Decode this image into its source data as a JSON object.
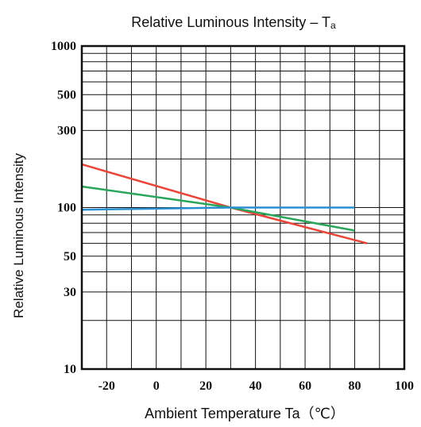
{
  "chart_data": {
    "type": "line",
    "title_main": "Relative Luminous Intensity – T",
    "title_sub": "a",
    "xlabel": "Ambient Temperature  Ta（℃）",
    "ylabel": "Relative Luminous Intensity",
    "xlim": [
      -30,
      100
    ],
    "ylim": [
      10,
      1000
    ],
    "yscale": "log",
    "grid": true,
    "x_ticks": [
      -20,
      0,
      20,
      40,
      60,
      80,
      100
    ],
    "x_tick_labels": [
      "-20",
      "0",
      "20",
      "40",
      "60",
      "80",
      "100"
    ],
    "y_ticks": [
      10,
      30,
      50,
      100,
      300,
      500,
      1000
    ],
    "y_tick_labels": [
      "10",
      "30",
      "50",
      "100",
      "300",
      "500",
      "1000"
    ],
    "y_gridlines": [
      10,
      20,
      30,
      40,
      50,
      60,
      70,
      80,
      90,
      100,
      200,
      300,
      400,
      500,
      600,
      700,
      800,
      900,
      1000
    ],
    "series": [
      {
        "color": "#e8463a",
        "x": [
          -30,
          30,
          85
        ],
        "y": [
          185,
          100,
          60
        ]
      },
      {
        "color": "#2aa55a",
        "x": [
          -30,
          30,
          80
        ],
        "y": [
          135,
          100,
          72
        ]
      },
      {
        "color": "#2a8fd0",
        "x": [
          -30,
          30,
          80
        ],
        "y": [
          97,
          100,
          100
        ]
      }
    ]
  }
}
